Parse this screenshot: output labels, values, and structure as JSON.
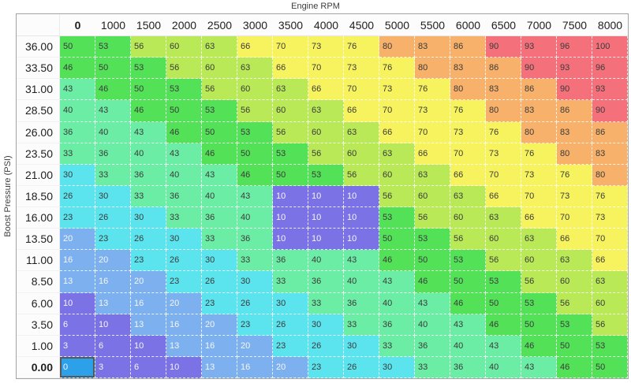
{
  "x_axis_title": "Engine RPM",
  "y_axis_title": "Boost Pressure (PSI)",
  "table": {
    "column_headers": [
      "0",
      "1000",
      "1500",
      "2000",
      "2500",
      "3000",
      "3500",
      "4000",
      "4500",
      "5000",
      "5500",
      "6000",
      "6500",
      "7000",
      "7500",
      "8000"
    ],
    "rows": [
      {
        "label": "36.00",
        "values": [
          50,
          53,
          56,
          60,
          63,
          66,
          70,
          73,
          76,
          80,
          83,
          86,
          90,
          93,
          96,
          100
        ]
      },
      {
        "label": "33.50",
        "values": [
          46,
          50,
          53,
          56,
          60,
          63,
          66,
          70,
          73,
          76,
          80,
          83,
          86,
          90,
          93,
          96
        ]
      },
      {
        "label": "31.00",
        "values": [
          43,
          46,
          50,
          53,
          56,
          60,
          63,
          66,
          70,
          73,
          76,
          80,
          83,
          86,
          90,
          93
        ]
      },
      {
        "label": "28.50",
        "values": [
          40,
          43,
          46,
          50,
          53,
          56,
          60,
          63,
          66,
          70,
          73,
          76,
          80,
          83,
          86,
          90
        ]
      },
      {
        "label": "26.00",
        "values": [
          36,
          40,
          43,
          46,
          50,
          53,
          56,
          60,
          63,
          66,
          70,
          73,
          76,
          80,
          83,
          86
        ]
      },
      {
        "label": "23.50",
        "values": [
          33,
          36,
          40,
          43,
          46,
          50,
          53,
          56,
          60,
          63,
          66,
          70,
          73,
          76,
          80,
          83
        ]
      },
      {
        "label": "21.00",
        "values": [
          30,
          33,
          36,
          40,
          43,
          46,
          50,
          53,
          56,
          60,
          63,
          66,
          70,
          73,
          76,
          80
        ]
      },
      {
        "label": "18.50",
        "values": [
          26,
          30,
          33,
          36,
          40,
          43,
          10,
          10,
          10,
          56,
          60,
          63,
          66,
          70,
          73,
          76
        ]
      },
      {
        "label": "16.00",
        "values": [
          23,
          26,
          30,
          33,
          36,
          40,
          10,
          10,
          10,
          53,
          56,
          60,
          63,
          66,
          70,
          73
        ]
      },
      {
        "label": "13.50",
        "values": [
          20,
          23,
          26,
          30,
          33,
          36,
          10,
          10,
          10,
          50,
          53,
          56,
          60,
          63,
          66,
          70
        ]
      },
      {
        "label": "11.00",
        "values": [
          16,
          20,
          23,
          26,
          30,
          33,
          36,
          40,
          43,
          46,
          50,
          53,
          56,
          60,
          63,
          66
        ]
      },
      {
        "label": "8.50",
        "values": [
          13,
          16,
          20,
          23,
          26,
          30,
          33,
          36,
          40,
          43,
          46,
          50,
          53,
          56,
          60,
          63
        ]
      },
      {
        "label": "6.00",
        "values": [
          10,
          13,
          16,
          20,
          23,
          26,
          30,
          33,
          36,
          40,
          43,
          46,
          50,
          53,
          56,
          60
        ]
      },
      {
        "label": "3.50",
        "values": [
          6,
          10,
          13,
          16,
          20,
          23,
          26,
          30,
          33,
          36,
          40,
          43,
          46,
          50,
          53,
          56
        ]
      },
      {
        "label": "1.00",
        "values": [
          3,
          6,
          10,
          13,
          16,
          20,
          23,
          26,
          30,
          33,
          36,
          40,
          43,
          46,
          50,
          53
        ]
      },
      {
        "label": "0.00",
        "values": [
          0,
          3,
          6,
          10,
          13,
          16,
          20,
          23,
          26,
          30,
          33,
          36,
          40,
          43,
          46,
          50
        ]
      }
    ],
    "selected": {
      "row": 15,
      "col": 0
    },
    "selected_cell_bg": "#2da0ea",
    "selected_cell_border": "#56585c",
    "color_scale": [
      {
        "name": "selected-blue",
        "max": 2,
        "bg": "#2da0ea",
        "fg": "#f6f6f6"
      },
      {
        "name": "purple",
        "max": 12,
        "bg": "#7b72e6",
        "fg": "#f6f6f6"
      },
      {
        "name": "light-blue",
        "max": 22,
        "bg": "#7cb0ef",
        "fg": "#f6f6f6"
      },
      {
        "name": "cyan",
        "max": 32,
        "bg": "#5ce4ee",
        "fg": "#3b3b3b"
      },
      {
        "name": "aquamarine",
        "max": 45,
        "bg": "#6ceda5",
        "fg": "#3b3b3b"
      },
      {
        "name": "green",
        "max": 55,
        "bg": "#53e158",
        "fg": "#3b3b3b"
      },
      {
        "name": "yellow-green",
        "max": 65,
        "bg": "#b9e957",
        "fg": "#3b3b3b"
      },
      {
        "name": "yellow",
        "max": 79,
        "bg": "#f7f35e",
        "fg": "#3b3b3b"
      },
      {
        "name": "orange",
        "max": 89,
        "bg": "#f7b16a",
        "fg": "#3b3b3b"
      },
      {
        "name": "red",
        "max": 1000,
        "bg": "#f4717c",
        "fg": "#3b3b3b"
      }
    ]
  }
}
